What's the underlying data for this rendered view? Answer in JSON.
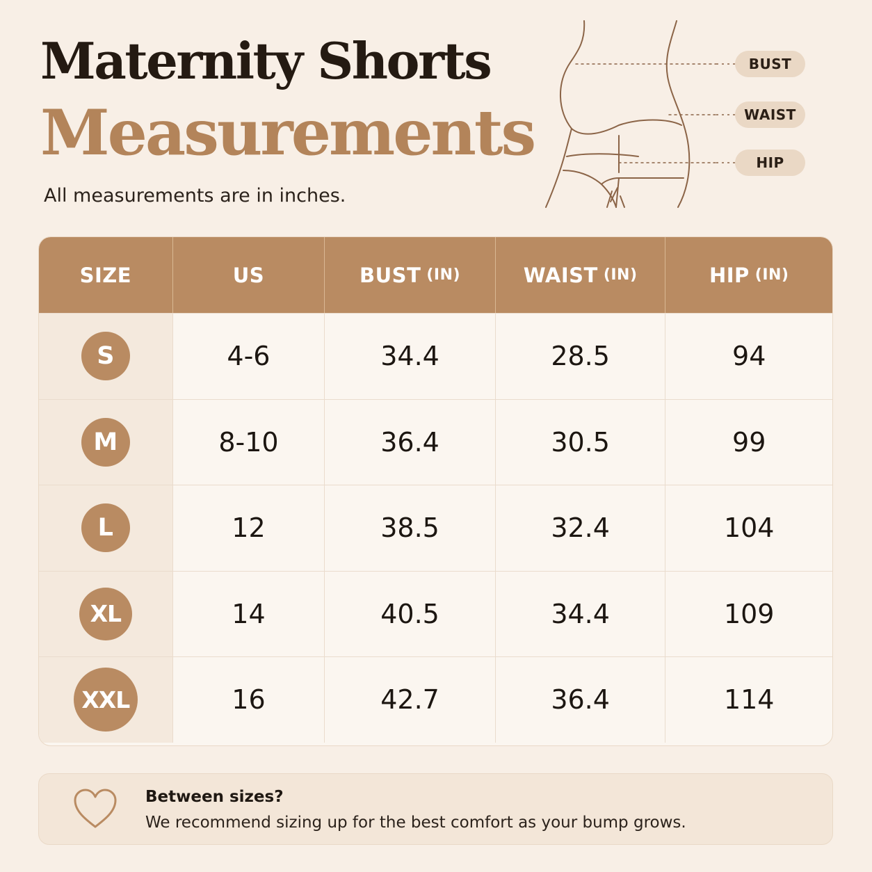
{
  "header": {
    "title_line1": "Maternity Shorts",
    "title_line2": "Measurements",
    "subtitle": "All measurements are in inches."
  },
  "figure": {
    "labels": {
      "bust": "BUST",
      "waist": "WAIST",
      "hip": "HIP"
    }
  },
  "table": {
    "headers": [
      {
        "label": "SIZE",
        "unit": ""
      },
      {
        "label": "US",
        "unit": ""
      },
      {
        "label": "BUST",
        "unit": "(IN)"
      },
      {
        "label": "WAIST",
        "unit": "(IN)"
      },
      {
        "label": "HIP",
        "unit": "(IN)"
      }
    ],
    "rows": [
      {
        "size": "S",
        "us": "4-6",
        "bust": "34.4",
        "waist": "28.5",
        "hip": "94"
      },
      {
        "size": "M",
        "us": "8-10",
        "bust": "36.4",
        "waist": "30.5",
        "hip": "99"
      },
      {
        "size": "L",
        "us": "12",
        "bust": "38.5",
        "waist": "32.4",
        "hip": "104"
      },
      {
        "size": "XL",
        "us": "14",
        "bust": "40.5",
        "waist": "34.4",
        "hip": "109"
      },
      {
        "size": "XXL",
        "us": "16",
        "bust": "42.7",
        "waist": "36.4",
        "hip": "114"
      }
    ]
  },
  "note": {
    "icon": "heart-icon",
    "question": "Between sizes?",
    "tip": "We recommend sizing up for the best comfort as your bump grows."
  },
  "colors": {
    "background": "#f8efe6",
    "accent": "#b98b62",
    "title_accent": "#b3845a",
    "pill": "#ead8c5"
  }
}
